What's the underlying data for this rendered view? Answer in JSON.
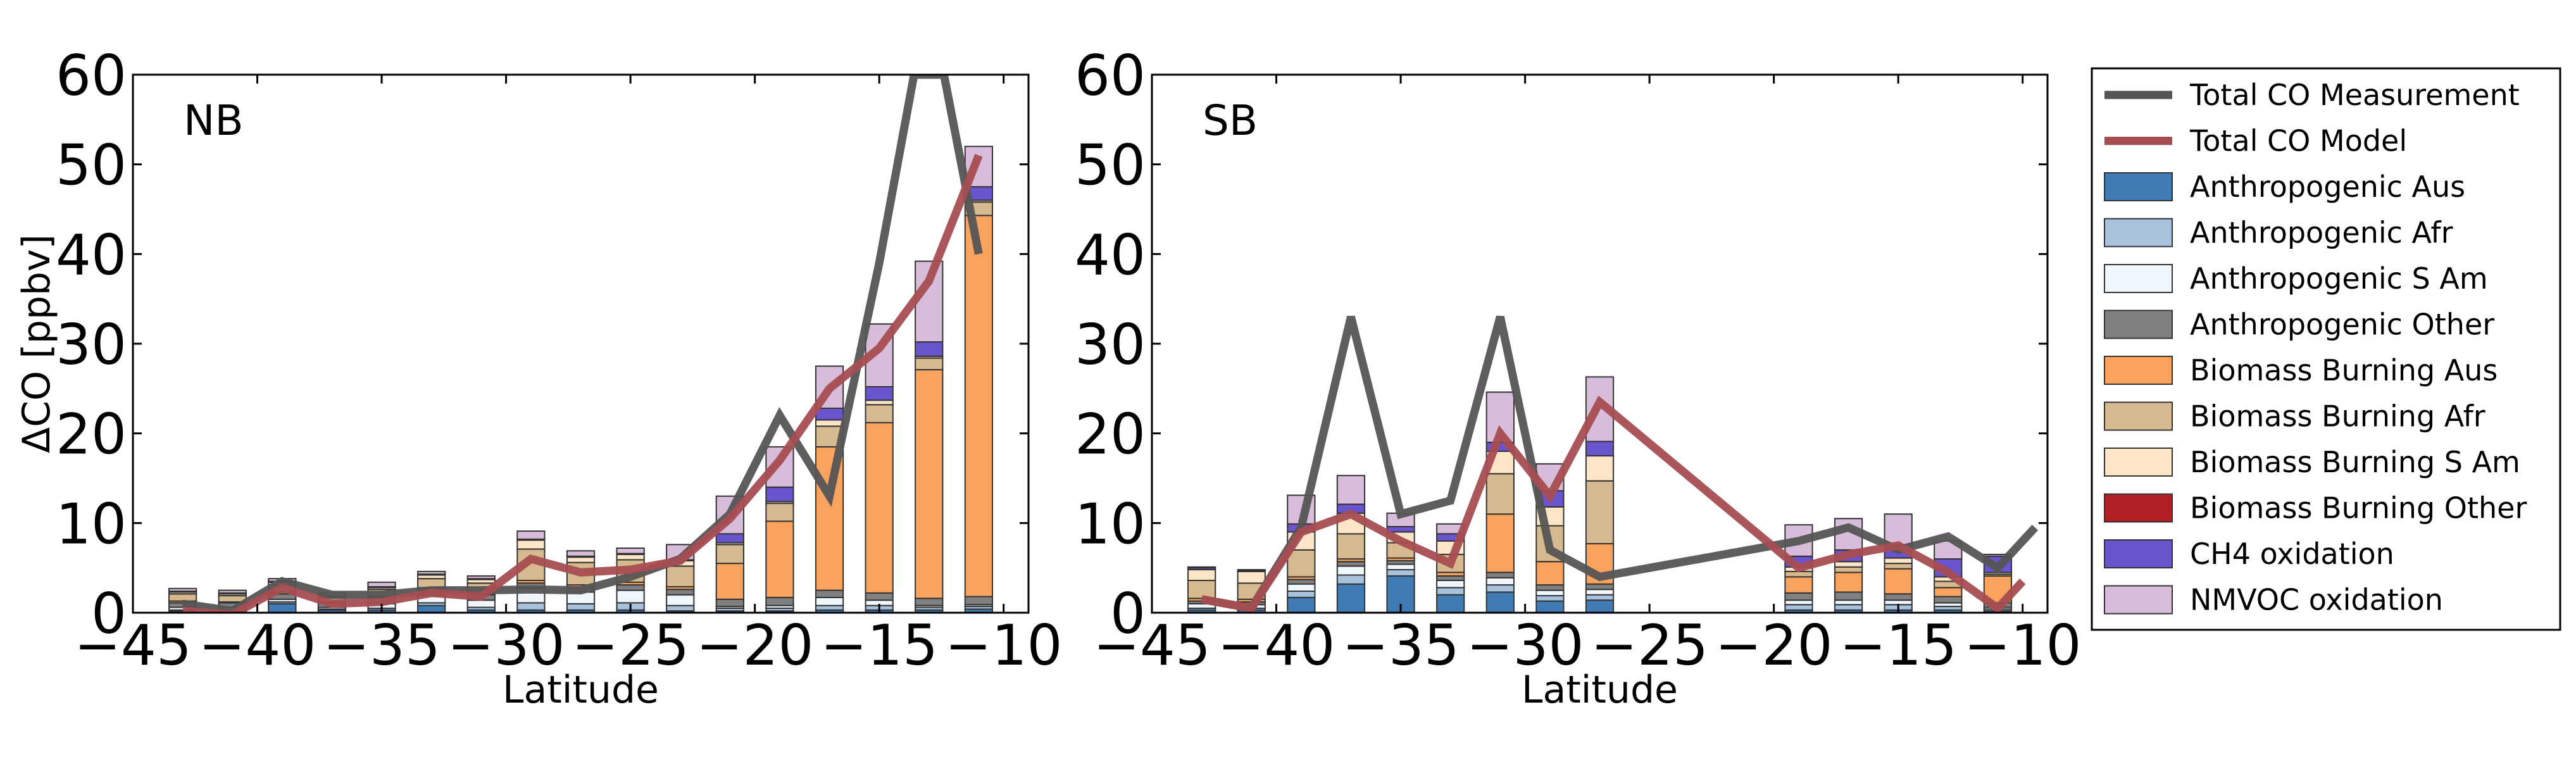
{
  "chart_data": [
    {
      "type": "bar",
      "panel_label": "NB",
      "xlabel": "Latitude",
      "ylabel": "ΔCO [ppbv]",
      "xlim": [
        -45,
        -9
      ],
      "ylim": [
        0,
        60
      ],
      "xticks": [
        -45,
        -40,
        -35,
        -30,
        -25,
        -20,
        -15,
        -10
      ],
      "yticks": [
        0,
        10,
        20,
        30,
        40,
        50,
        60
      ],
      "x": [
        -43,
        -41,
        -39,
        -37,
        -35,
        -33,
        -31,
        -29,
        -27,
        -25,
        -23,
        -21,
        -19,
        -17,
        -15,
        -13,
        -11
      ],
      "stacked_series": [
        {
          "name": "Anthropogenic Aus",
          "values": [
            0.2,
            0.2,
            1.0,
            0.3,
            0.3,
            0.8,
            0.3,
            0.3,
            0.3,
            0.3,
            0.2,
            0.2,
            0.2,
            0.3,
            0.3,
            0.3,
            0.4
          ]
        },
        {
          "name": "Anthropogenic Afr",
          "values": [
            0.1,
            0.1,
            0.2,
            0.1,
            0.2,
            0.3,
            0.3,
            0.8,
            0.7,
            0.8,
            0.6,
            0.3,
            0.3,
            0.5,
            0.5,
            0.3,
            0.3
          ]
        },
        {
          "name": "Anthropogenic S Am",
          "values": [
            0.3,
            0.3,
            0.3,
            0.2,
            0.5,
            0.8,
            0.8,
            1.6,
            1.3,
            1.4,
            1.2,
            0.2,
            0.3,
            0.9,
            0.6,
            0.2,
            0.2
          ]
        },
        {
          "name": "Anthropogenic Other",
          "values": [
            0.5,
            0.5,
            0.6,
            0.5,
            0.7,
            0.7,
            0.6,
            0.6,
            0.5,
            0.6,
            0.6,
            0.8,
            0.9,
            0.8,
            0.8,
            0.8,
            0.9
          ]
        },
        {
          "name": "Biomass Burning Aus",
          "values": [
            0.2,
            0.1,
            0.2,
            0.1,
            0.1,
            0.2,
            0.1,
            0.3,
            0.3,
            0.3,
            0.3,
            4.0,
            8.5,
            16.0,
            19.0,
            25.5,
            42.5
          ]
        },
        {
          "name": "Biomass Burning Afr",
          "values": [
            0.8,
            0.7,
            0.8,
            0.5,
            0.8,
            1.0,
            1.2,
            3.5,
            2.5,
            2.5,
            2.3,
            2.1,
            2.0,
            2.3,
            2.0,
            1.3,
            1.5
          ]
        },
        {
          "name": "Biomass Burning S Am",
          "values": [
            0.2,
            0.2,
            0.3,
            0.1,
            0.2,
            0.4,
            0.4,
            1.0,
            0.6,
            0.6,
            0.6,
            0.2,
            0.2,
            0.7,
            0.5,
            0.2,
            0.2
          ]
        },
        {
          "name": "Biomass Burning Other",
          "values": [
            0,
            0,
            0,
            0,
            0,
            0,
            0,
            0,
            0,
            0,
            0,
            0,
            0,
            0,
            0,
            0,
            0
          ]
        },
        {
          "name": "CH4 oxidation",
          "values": [
            0.1,
            0.1,
            0.1,
            0.1,
            0.1,
            0.1,
            0.1,
            0.1,
            0.1,
            0.1,
            0.1,
            1.0,
            1.6,
            1.3,
            1.5,
            1.6,
            1.5
          ]
        },
        {
          "name": "NMVOC oxidation",
          "values": [
            0.3,
            0.3,
            0.3,
            0.3,
            0.5,
            0.3,
            0.3,
            0.9,
            0.6,
            0.6,
            1.7,
            4.2,
            4.5,
            4.7,
            7.0,
            9.0,
            4.5
          ]
        }
      ],
      "lines": [
        {
          "name": "Total CO Measurement",
          "x": [
            -43,
            -41,
            -39,
            -37,
            -35,
            -33,
            -31,
            -29,
            -27,
            -25,
            -23,
            -21,
            -19,
            -17,
            -15,
            -13.6,
            -12.4,
            -11
          ],
          "y": [
            1.0,
            0.2,
            3.5,
            2.0,
            2.0,
            2.5,
            2.5,
            2.6,
            2.5,
            4.0,
            6.0,
            11.0,
            22.0,
            13.0,
            39.0,
            60.0,
            60.0,
            40.0
          ]
        },
        {
          "name": "Total CO Model",
          "x": [
            -43,
            -41,
            -39,
            -37,
            -35,
            -33,
            -31,
            -29,
            -27,
            -25,
            -23,
            -21,
            -19,
            -17,
            -15,
            -13,
            -11
          ],
          "y": [
            0.2,
            -0.2,
            2.8,
            1.0,
            1.2,
            2.2,
            1.8,
            6.0,
            4.5,
            4.8,
            5.8,
            10.5,
            17.0,
            25.0,
            29.5,
            37.0,
            51.0
          ]
        }
      ]
    },
    {
      "type": "bar",
      "panel_label": "SB",
      "xlabel": "Latitude",
      "ylabel": "",
      "xlim": [
        -45,
        -9
      ],
      "ylim": [
        0,
        60
      ],
      "xticks": [
        -45,
        -40,
        -35,
        -30,
        -25,
        -20,
        -15,
        -10
      ],
      "yticks": [
        0,
        10,
        20,
        30,
        40,
        50,
        60
      ],
      "x": [
        -43,
        -41,
        -39,
        -37,
        -35,
        -33,
        -31,
        -29,
        -27,
        -19,
        -17,
        -15,
        -13,
        -11
      ],
      "stacked_series": [
        {
          "name": "Anthropogenic Aus",
          "values": [
            0.3,
            0.3,
            1.7,
            3.2,
            4.1,
            2.0,
            2.3,
            1.3,
            1.4,
            0.3,
            0.3,
            0.3,
            0.3,
            0.2
          ]
        },
        {
          "name": "Anthropogenic Afr",
          "values": [
            0.2,
            0.2,
            0.7,
            1.0,
            0.7,
            0.8,
            0.8,
            0.6,
            0.6,
            0.6,
            0.6,
            0.6,
            0.4,
            0.2
          ]
        },
        {
          "name": "Anthropogenic S Am",
          "values": [
            0.5,
            0.4,
            0.8,
            1.0,
            0.6,
            0.8,
            0.8,
            0.6,
            0.6,
            0.5,
            0.5,
            0.5,
            0.4,
            0.2
          ]
        },
        {
          "name": "Anthropogenic Other",
          "values": [
            0.3,
            0.3,
            0.5,
            0.5,
            0.4,
            0.5,
            0.6,
            0.6,
            0.6,
            0.8,
            0.9,
            0.7,
            0.7,
            0.5
          ]
        },
        {
          "name": "Biomass Burning Aus",
          "values": [
            0.3,
            0.3,
            0.3,
            0.3,
            0.3,
            0.4,
            6.5,
            2.6,
            4.5,
            1.8,
            2.2,
            2.8,
            1.0,
            3.0
          ]
        },
        {
          "name": "Biomass Burning Afr",
          "values": [
            2.0,
            1.8,
            3.0,
            2.8,
            1.7,
            2.0,
            4.5,
            4.0,
            7.0,
            0.6,
            0.6,
            0.6,
            0.7,
            0.2
          ]
        },
        {
          "name": "Biomass Burning S Am",
          "values": [
            1.2,
            1.3,
            2.0,
            2.3,
            1.2,
            1.5,
            2.5,
            2.1,
            2.8,
            0.5,
            0.6,
            0.6,
            0.5,
            0.2
          ]
        },
        {
          "name": "Biomass Burning Other",
          "values": [
            0,
            0,
            0,
            0,
            0,
            0,
            0,
            0,
            0,
            0,
            0,
            0,
            0,
            0
          ]
        },
        {
          "name": "CH4 oxidation",
          "values": [
            0.2,
            0.1,
            0.9,
            1.0,
            0.6,
            0.8,
            1.0,
            1.8,
            1.6,
            1.2,
            1.3,
            1.5,
            2.0,
            1.8
          ]
        },
        {
          "name": "NMVOC oxidation",
          "values": [
            0.1,
            0.1,
            3.2,
            3.2,
            1.5,
            1.1,
            5.6,
            3.0,
            7.2,
            3.5,
            3.5,
            3.4,
            2.0,
            0.2
          ]
        }
      ],
      "lines": [
        {
          "name": "Total CO Measurement",
          "x": [
            -43,
            -41,
            -39,
            -37,
            -35,
            -33,
            -31,
            -29,
            -27,
            -19,
            -17,
            -15,
            -13,
            -11,
            -9.5
          ],
          "y": [
            1.5,
            0.5,
            9.5,
            33.0,
            11.0,
            12.5,
            33.0,
            7.0,
            4.0,
            8.0,
            9.5,
            7.0,
            8.5,
            5.0,
            9.5
          ]
        },
        {
          "name": "Total CO Model",
          "x": [
            -43,
            -41,
            -39,
            -37,
            -35,
            -33,
            -31,
            -29,
            -27,
            -19,
            -17,
            -15,
            -13,
            -11,
            -10
          ],
          "y": [
            1.5,
            0.5,
            9.0,
            11.0,
            8.0,
            5.5,
            20.0,
            13.0,
            23.5,
            5.0,
            6.5,
            7.5,
            4.5,
            0.5,
            3.5
          ]
        }
      ]
    }
  ],
  "legend": {
    "location": "outside-right",
    "entries": [
      {
        "label": "Total CO Measurement",
        "kind": "line",
        "color": "#555555"
      },
      {
        "label": "Total CO Model",
        "kind": "line",
        "color": "#a64d52"
      },
      {
        "label": "Anthropogenic Aus",
        "kind": "patch",
        "color": "#3f7bb5"
      },
      {
        "label": "Anthropogenic Afr",
        "kind": "patch",
        "color": "#a8c2de"
      },
      {
        "label": "Anthropogenic S Am",
        "kind": "patch",
        "color": "#eff6fc"
      },
      {
        "label": "Anthropogenic Other",
        "kind": "patch",
        "color": "#808080"
      },
      {
        "label": "Biomass Burning Aus",
        "kind": "patch",
        "color": "#f9a35f"
      },
      {
        "label": "Biomass Burning Afr",
        "kind": "patch",
        "color": "#d6b98f"
      },
      {
        "label": "Biomass Burning S Am",
        "kind": "patch",
        "color": "#fde6c8"
      },
      {
        "label": "Biomass Burning Other",
        "kind": "patch",
        "color": "#b22025"
      },
      {
        "label": "CH4 oxidation",
        "kind": "patch",
        "color": "#6a55cf"
      },
      {
        "label": "NMVOC oxidation",
        "kind": "patch",
        "color": "#d8bddb"
      }
    ]
  }
}
